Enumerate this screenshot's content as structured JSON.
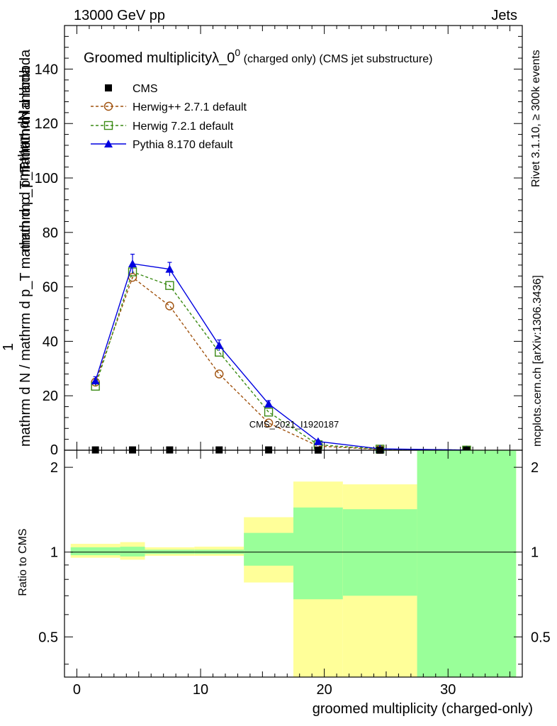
{
  "header": {
    "energy": "13000 GeV pp",
    "category": "Jets"
  },
  "side_text": {
    "rivet": "Rivet 3.1.10, ≥ 300k events",
    "mcplots": "mcplots.cern.ch [arXiv:1306.3436]"
  },
  "watermark": "CMS_2021_I1920187",
  "chart_data": [
    {
      "type": "line",
      "title_main": "Groomed multiplicityλ_0",
      "title_sup": "0",
      "title_suffix": " (charged only) (CMS jet substructure)",
      "ylabel_lines": [
        "mathrm dN",
        "mathrm d p_T mathrm d lambda",
        "1",
        "mathrm d N / mathrm d p_T mathrm d p_T mathrm d lambda"
      ],
      "xlim": [
        -1,
        36
      ],
      "ylim": [
        0,
        156
      ],
      "y_ticks": [
        20,
        40,
        60,
        80,
        100,
        120,
        140
      ],
      "y_ticklabels": [
        "20",
        "40",
        "60",
        "80",
        "100",
        "120",
        "140"
      ],
      "y_zero_label": "0",
      "legend_position": "top-left",
      "bins": [
        [
          -1,
          4
        ],
        [
          4,
          6
        ],
        [
          6,
          9
        ],
        [
          9,
          14
        ],
        [
          14,
          17
        ],
        [
          17,
          22
        ],
        [
          22,
          27
        ],
        [
          27,
          36
        ]
      ],
      "series": [
        {
          "name": "CMS",
          "color": "#000000",
          "marker": "square",
          "x": [
            1.5,
            4.5,
            7.5,
            11.5,
            15.5,
            19.5,
            24.5,
            31.5
          ],
          "y": [
            0.1,
            0.1,
            0.1,
            0.1,
            0.1,
            0.05,
            0.02,
            0.01
          ]
        },
        {
          "name": "Herwig++ 2.7.1 default",
          "color": "#a0520e",
          "marker": "circle",
          "dash": "4,3",
          "x": [
            1.5,
            4.5,
            7.5,
            11.5,
            15.5,
            19.5,
            24.5,
            31.5
          ],
          "y": [
            25,
            63.5,
            53,
            28,
            10,
            1.5,
            0.3,
            0.05
          ]
        },
        {
          "name": "Herwig 7.2.1 default",
          "color": "#3a8a14",
          "marker": "square-open",
          "dash": "4,3",
          "x": [
            1.5,
            4.5,
            7.5,
            11.5,
            15.5,
            19.5,
            24.5,
            31.5
          ],
          "y": [
            23.5,
            65.5,
            60.5,
            36,
            14,
            2,
            0.4,
            0.05
          ]
        },
        {
          "name": "Pythia 8.170 default",
          "color": "#0000e0",
          "marker": "triangle",
          "x": [
            1.5,
            4.5,
            7.5,
            11.5,
            15.5,
            19.5,
            24.5,
            31.5
          ],
          "y": [
            25.5,
            68.5,
            66.5,
            38.5,
            17,
            3.2,
            0.5,
            0.06
          ],
          "err": [
            1.5,
            3.5,
            2.5,
            2,
            1.2,
            0.4,
            0.2,
            0.05
          ]
        }
      ]
    },
    {
      "type": "area",
      "ylabel": "Ratio to CMS",
      "xlabel": "groomed multiplicity (charged-only)",
      "xlim": [
        -1,
        36
      ],
      "ylim": [
        0.36,
        2.3
      ],
      "log_y": true,
      "x_ticks": [
        0,
        10,
        20,
        30
      ],
      "x_ticklabels": [
        "0",
        "10",
        "20",
        "30"
      ],
      "y_ticks": [
        0.5,
        1,
        2
      ],
      "y_ticklabels": [
        "0.5",
        "1",
        "2"
      ],
      "band_colors": {
        "inner": "#99ff99",
        "outer": "#ffff99"
      },
      "bands": [
        {
          "x0": -0.5,
          "x1": 3.5,
          "outer": [
            0.955,
            1.07
          ],
          "inner": [
            0.975,
            1.04
          ]
        },
        {
          "x0": 3.5,
          "x1": 5.5,
          "outer": [
            0.94,
            1.085
          ],
          "inner": [
            0.965,
            1.045
          ]
        },
        {
          "x0": 5.5,
          "x1": 9.5,
          "outer": [
            0.97,
            1.04
          ],
          "inner": [
            0.985,
            1.02
          ]
        },
        {
          "x0": 9.5,
          "x1": 13.5,
          "outer": [
            0.97,
            1.045
          ],
          "inner": [
            0.985,
            1.02
          ]
        },
        {
          "x0": 13.5,
          "x1": 17.5,
          "outer": [
            0.78,
            1.33
          ],
          "inner": [
            0.895,
            1.17
          ]
        },
        {
          "x0": 17.5,
          "x1": 21.5,
          "outer": [
            0.32,
            1.78
          ],
          "inner": [
            0.68,
            1.44
          ]
        },
        {
          "x0": 21.5,
          "x1": 27.5,
          "outer": [
            0.32,
            1.74
          ],
          "inner": [
            0.7,
            1.42
          ]
        },
        {
          "x0": 27.5,
          "x1": 35.5,
          "outer": [
            0.32,
            2.4
          ],
          "inner": [
            0.32,
            2.4
          ]
        }
      ]
    }
  ]
}
